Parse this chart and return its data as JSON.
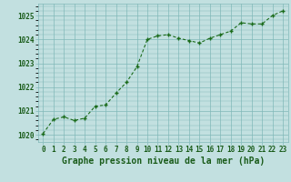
{
  "x": [
    0,
    1,
    2,
    3,
    4,
    5,
    6,
    7,
    8,
    9,
    10,
    11,
    12,
    13,
    14,
    15,
    16,
    17,
    18,
    19,
    20,
    21,
    22,
    23
  ],
  "y": [
    1020.05,
    1020.65,
    1020.75,
    1020.6,
    1020.7,
    1021.2,
    1021.25,
    1021.75,
    1022.2,
    1022.85,
    1024.0,
    1024.15,
    1024.2,
    1024.05,
    1023.95,
    1023.85,
    1024.05,
    1024.2,
    1024.35,
    1024.7,
    1024.65,
    1024.65,
    1025.0,
    1025.2
  ],
  "line_color": "#1a6b1a",
  "marker_color": "#1a6b1a",
  "bg_color": "#c2e0e0",
  "grid_color": "#80b8b8",
  "xlabel": "Graphe pression niveau de la mer (hPa)",
  "ylim": [
    1019.7,
    1025.5
  ],
  "xlim": [
    -0.5,
    23.5
  ],
  "yticks": [
    1020,
    1021,
    1022,
    1023,
    1024,
    1025
  ],
  "xticks": [
    0,
    1,
    2,
    3,
    4,
    5,
    6,
    7,
    8,
    9,
    10,
    11,
    12,
    13,
    14,
    15,
    16,
    17,
    18,
    19,
    20,
    21,
    22,
    23
  ],
  "title_fontsize": 7.0,
  "tick_fontsize": 5.5,
  "title_color": "#1a5c1a",
  "tick_color": "#1a5c1a",
  "line_width": 0.8
}
